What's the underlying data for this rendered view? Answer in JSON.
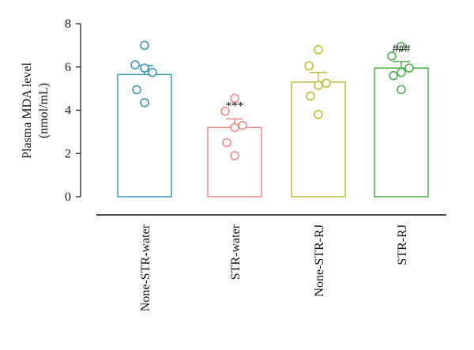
{
  "chart_data": {
    "type": "bar",
    "title": "",
    "ylabel": "Plasma MDA level",
    "ylabel_unit": "(nmol/mL)",
    "xlabel": "",
    "ylim": [
      0,
      8
    ],
    "yticks": [
      "0",
      "2",
      "4",
      "6",
      "8"
    ],
    "grid": false,
    "categories": [
      "None-STR-water",
      "STR-water",
      "None-STR-RJ",
      "STR-RJ"
    ],
    "means": [
      5.65,
      3.2,
      5.3,
      5.95
    ],
    "sem": [
      0.42,
      0.4,
      0.45,
      0.3
    ],
    "points": [
      [
        7.0,
        6.1,
        5.75,
        5.95,
        4.95,
        4.35
      ],
      [
        4.55,
        3.95,
        3.3,
        3.2,
        2.5,
        1.9
      ],
      [
        6.8,
        6.05,
        5.25,
        5.15,
        4.65,
        3.8
      ],
      [
        6.95,
        6.5,
        5.95,
        5.75,
        5.6,
        4.95
      ]
    ],
    "annotations": [
      "",
      "***",
      "",
      "###"
    ],
    "colors": [
      "#3a98b9",
      "#ee8a84",
      "#bcbd3a",
      "#4db04a"
    ]
  }
}
